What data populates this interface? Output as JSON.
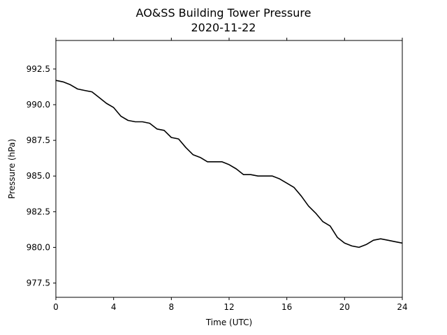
{
  "chart_data": {
    "type": "line",
    "title": "AO&SS Building Tower Pressure",
    "subtitle": "2020-11-22",
    "xlabel": "Time (UTC)",
    "ylabel": "Pressure (hPa)",
    "xlim": [
      0,
      24
    ],
    "ylim": [
      976.5,
      994.5
    ],
    "xticks": [
      0,
      4,
      8,
      12,
      16,
      20,
      24
    ],
    "yticks": [
      977.5,
      980.0,
      982.5,
      985.0,
      987.5,
      990.0,
      992.5
    ],
    "ytick_labels": [
      "977.5",
      "980.0",
      "982.5",
      "985.0",
      "987.5",
      "990.0",
      "992.5"
    ],
    "grid": false,
    "line_color": "#000000",
    "series": [
      {
        "x": [
          0,
          0.5,
          1.0,
          1.5,
          2.0,
          2.5,
          3.0,
          3.5,
          4.0,
          4.5,
          5.0,
          5.5,
          6.0,
          6.5,
          7.0,
          7.5,
          8.0,
          8.5,
          9.0,
          9.5,
          10.0,
          10.5,
          11.0,
          11.5,
          12.0,
          12.5,
          13.0,
          13.5,
          14.0,
          14.5,
          15.0,
          15.5,
          16.0,
          16.5,
          17.0,
          17.5,
          18.0,
          18.5,
          19.0,
          19.5,
          20.0,
          20.5,
          21.0,
          21.5,
          22.0,
          22.5,
          23.0,
          23.5,
          24.0
        ],
        "y": [
          991.7,
          991.6,
          991.4,
          991.1,
          991.0,
          990.9,
          990.5,
          990.1,
          989.8,
          989.2,
          988.9,
          988.8,
          988.8,
          988.7,
          988.3,
          988.2,
          987.7,
          987.6,
          987.0,
          986.5,
          986.3,
          986.0,
          986.0,
          986.0,
          985.8,
          985.5,
          985.1,
          985.1,
          985.0,
          985.0,
          985.0,
          984.8,
          984.5,
          984.2,
          983.6,
          982.9,
          982.4,
          981.8,
          981.5,
          980.7,
          980.3,
          980.1,
          980.0,
          980.2,
          980.5,
          980.6,
          980.5,
          980.4,
          980.3
        ]
      }
    ]
  }
}
